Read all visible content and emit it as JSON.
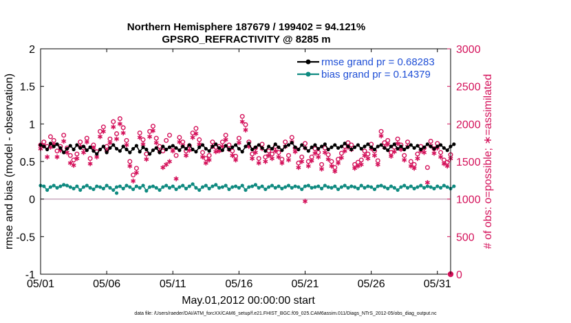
{
  "chart_data": {
    "type": "line",
    "title_line1": "Northern Hemisphere 187679 / 199402 = 94.121%",
    "title_line2": "GPSRO_REFRACTIVITY @ 8285 m",
    "xlabel": "May.01,2012 00:00:00 start",
    "ylabel_left": "rmse and bias (model - observation)",
    "ylabel_right": "# of obs: o=possible; ∗=assimilated",
    "left_axis": {
      "ylim": [
        -1,
        2
      ],
      "ticks": [
        "-1",
        "-0.5",
        "0",
        "0.5",
        "1",
        "1.5",
        "2"
      ],
      "tick_values": [
        -1,
        -0.5,
        0,
        0.5,
        1,
        1.5,
        2
      ]
    },
    "right_axis": {
      "ylim": [
        0,
        3000
      ],
      "ticks": [
        "0",
        "500",
        "1000",
        "1500",
        "2000",
        "2500",
        "3000"
      ],
      "tick_values": [
        0,
        500,
        1000,
        1500,
        2000,
        2500,
        3000
      ]
    },
    "x_axis": {
      "xlim": [
        1,
        32
      ],
      "ticks": [
        "05/01",
        "05/06",
        "05/11",
        "05/16",
        "05/21",
        "05/26",
        "05/31"
      ],
      "tick_values": [
        1,
        6,
        11,
        16,
        21,
        26,
        31
      ]
    },
    "legend": [
      {
        "label": "rmse grand pr = 0.68283",
        "color": "#000000"
      },
      {
        "label": "bias grand pr = 0.14379",
        "color": "#0e8a80"
      }
    ],
    "legend_position": "top-right",
    "series": [
      {
        "name": "rmse",
        "axis": "left",
        "color": "#000000",
        "marker": "dot",
        "x_start": 1,
        "x_step": 0.25,
        "values": [
          0.72,
          0.7,
          0.66,
          0.74,
          0.7,
          0.73,
          0.68,
          0.62,
          0.67,
          0.71,
          0.66,
          0.72,
          0.68,
          0.7,
          0.65,
          0.69,
          0.64,
          0.6,
          0.66,
          0.7,
          0.62,
          0.68,
          0.72,
          0.67,
          0.64,
          0.7,
          0.66,
          0.62,
          0.67,
          0.71,
          0.63,
          0.69,
          0.66,
          0.6,
          0.65,
          0.68,
          0.62,
          0.7,
          0.66,
          0.69,
          0.71,
          0.68,
          0.65,
          0.7,
          0.67,
          0.72,
          0.66,
          0.63,
          0.69,
          0.72,
          0.67,
          0.64,
          0.7,
          0.73,
          0.68,
          0.65,
          0.71,
          0.66,
          0.69,
          0.72,
          0.67,
          0.63,
          0.7,
          0.74,
          0.66,
          0.69,
          0.72,
          0.68,
          0.64,
          0.7,
          0.67,
          0.73,
          0.69,
          0.65,
          0.7,
          0.72,
          0.75,
          0.69,
          0.66,
          0.72,
          0.68,
          0.64,
          0.69,
          0.72,
          0.67,
          0.7,
          0.73,
          0.66,
          0.69,
          0.72,
          0.68,
          0.7,
          0.74,
          0.7,
          0.66,
          0.69,
          0.72,
          0.67,
          0.7,
          0.73,
          0.69,
          0.66,
          0.7,
          0.72,
          0.68,
          0.65,
          0.7,
          0.73,
          0.67,
          0.7,
          0.66,
          0.69,
          0.72,
          0.68,
          0.71,
          0.66,
          0.69,
          0.73,
          0.7,
          0.67,
          0.7,
          0.72,
          0.68,
          0.65,
          0.7,
          0.73
        ]
      },
      {
        "name": "bias",
        "axis": "left",
        "color": "#0e8a80",
        "marker": "dot",
        "x_start": 1,
        "x_step": 0.25,
        "values": [
          0.18,
          0.17,
          0.12,
          0.16,
          0.18,
          0.15,
          0.17,
          0.19,
          0.18,
          0.16,
          0.14,
          0.17,
          0.12,
          0.16,
          0.18,
          0.15,
          0.13,
          0.17,
          0.16,
          0.14,
          0.18,
          0.15,
          0.12,
          0.16,
          0.17,
          0.14,
          0.18,
          0.16,
          0.13,
          0.17,
          0.15,
          0.18,
          0.11,
          0.16,
          0.17,
          0.15,
          0.12,
          0.16,
          0.18,
          0.15,
          0.17,
          0.13,
          0.16,
          0.18,
          0.14,
          0.17,
          0.2,
          0.15,
          0.12,
          0.16,
          0.18,
          0.14,
          0.17,
          0.19,
          0.15,
          0.16,
          0.18,
          0.13,
          0.16,
          0.17,
          0.15,
          0.18,
          0.12,
          0.16,
          0.17,
          0.19,
          0.15,
          0.17,
          0.13,
          0.16,
          0.18,
          0.15,
          0.17,
          0.14,
          0.16,
          0.18,
          0.15,
          0.17,
          0.16,
          0.13,
          0.17,
          0.18,
          0.15,
          0.16,
          0.17,
          0.14,
          0.18,
          0.16,
          0.15,
          0.17,
          0.13,
          0.16,
          0.18,
          0.15,
          0.17,
          0.16,
          0.14,
          0.18,
          0.15,
          0.17,
          0.16,
          0.13,
          0.17,
          0.18,
          0.16,
          0.14,
          0.17,
          0.15,
          0.12,
          0.16,
          0.18,
          0.15,
          0.17,
          0.14,
          0.16,
          0.18,
          0.15,
          0.17,
          0.16,
          0.14,
          0.17,
          0.15,
          0.18,
          0.16,
          0.14,
          0.17
        ]
      },
      {
        "name": "obs possible",
        "axis": "right",
        "color": "#d4115a",
        "marker": "o",
        "x_start": 1,
        "x_step": 0.25,
        "values": [
          1720,
          1760,
          1700,
          1830,
          1780,
          1640,
          1700,
          1850,
          1680,
          1580,
          1520,
          1600,
          1760,
          1680,
          1810,
          1540,
          1720,
          1630,
          1900,
          1960,
          1700,
          1800,
          2030,
          1870,
          2070,
          1950,
          1780,
          1500,
          1320,
          1410,
          1880,
          1790,
          1600,
          1900,
          1970,
          1810,
          1700,
          1640,
          1780,
          1850,
          1690,
          1580,
          1820,
          1760,
          1640,
          1710,
          1880,
          1940,
          1790,
          1620,
          1540,
          1580,
          1760,
          1690,
          1700,
          1760,
          1850,
          1720,
          1640,
          1570,
          1810,
          2100,
          1990,
          1760,
          1600,
          1680,
          1540,
          1730,
          1560,
          1640,
          1600,
          1700,
          1620,
          1530,
          1760,
          1580,
          1820,
          1680,
          1480,
          1560,
          1740,
          1500,
          1560,
          1670,
          1620,
          1460,
          1680,
          1590,
          1500,
          1420,
          1530,
          1610,
          1700,
          1750,
          1720,
          1460,
          1490,
          1520,
          1640,
          1600,
          1730,
          1640,
          1510,
          1900,
          1750,
          1780,
          1620,
          1690,
          1800,
          1720,
          1580,
          1760,
          1500,
          1460,
          1600,
          1700,
          1680,
          1420,
          1770,
          1670,
          1740,
          1620,
          1520,
          1490,
          1590,
          1530
        ]
      },
      {
        "name": "obs assimilated",
        "axis": "right",
        "color": "#d4115a",
        "marker": "star",
        "x_start": 1,
        "x_step": 0.25,
        "values": [
          1670,
          1710,
          1560,
          1690,
          1730,
          1560,
          1650,
          1770,
          1620,
          1480,
          1450,
          1540,
          1700,
          1620,
          1760,
          1470,
          1680,
          1560,
          1830,
          1900,
          1650,
          1750,
          1960,
          1800,
          2000,
          1880,
          1720,
          1440,
          1240,
          1350,
          1820,
          1730,
          1530,
          1830,
          1910,
          1750,
          1640,
          1420,
          1460,
          1500,
          1640,
          1270,
          1760,
          1710,
          1580,
          1650,
          1820,
          1870,
          1730,
          1560,
          1480,
          1520,
          1700,
          1630,
          1640,
          1700,
          1790,
          1660,
          1580,
          1520,
          1750,
          2030,
          1920,
          1700,
          1540,
          1620,
          1480,
          1670,
          1500,
          1580,
          1540,
          1640,
          1560,
          1480,
          1700,
          1520,
          1760,
          1630,
          1420,
          1500,
          1680,
          1440,
          1510,
          1610,
          1560,
          1400,
          1620,
          1530,
          1440,
          1370,
          1480,
          1550,
          1640,
          1690,
          1660,
          1410,
          1440,
          1460,
          1580,
          1540,
          1670,
          1580,
          1460,
          1840,
          1690,
          1730,
          1570,
          1630,
          1740,
          1660,
          1520,
          1700,
          1440,
          1410,
          1540,
          1640,
          1620,
          1220,
          1710,
          1610,
          1680,
          1560,
          1470,
          1440,
          1540,
          1480
        ]
      }
    ],
    "extra_points": [
      {
        "name": "bias-dip",
        "series": "bias",
        "x": 6.75,
        "y": 0.08
      },
      {
        "name": "obs-dip",
        "series": "obs assimilated",
        "x": 21.0,
        "y": 970
      },
      {
        "name": "obs-zero-end",
        "series": "obs possible",
        "x": 32,
        "y": 0
      }
    ],
    "footer": "data file: /Users/raeder/DAI/ATM_forcXX/CAM6_setup/f.e21.FHIST_BGC.f09_025.CAM6assim.011/Diags_NTrS_2012-05/obs_diag_output.nc"
  },
  "colors": {
    "rmse": "#000000",
    "bias": "#0e8a80",
    "obs": "#d4115a",
    "legend_text": "#1f4fd6",
    "zero_line": "#b58aa8"
  }
}
